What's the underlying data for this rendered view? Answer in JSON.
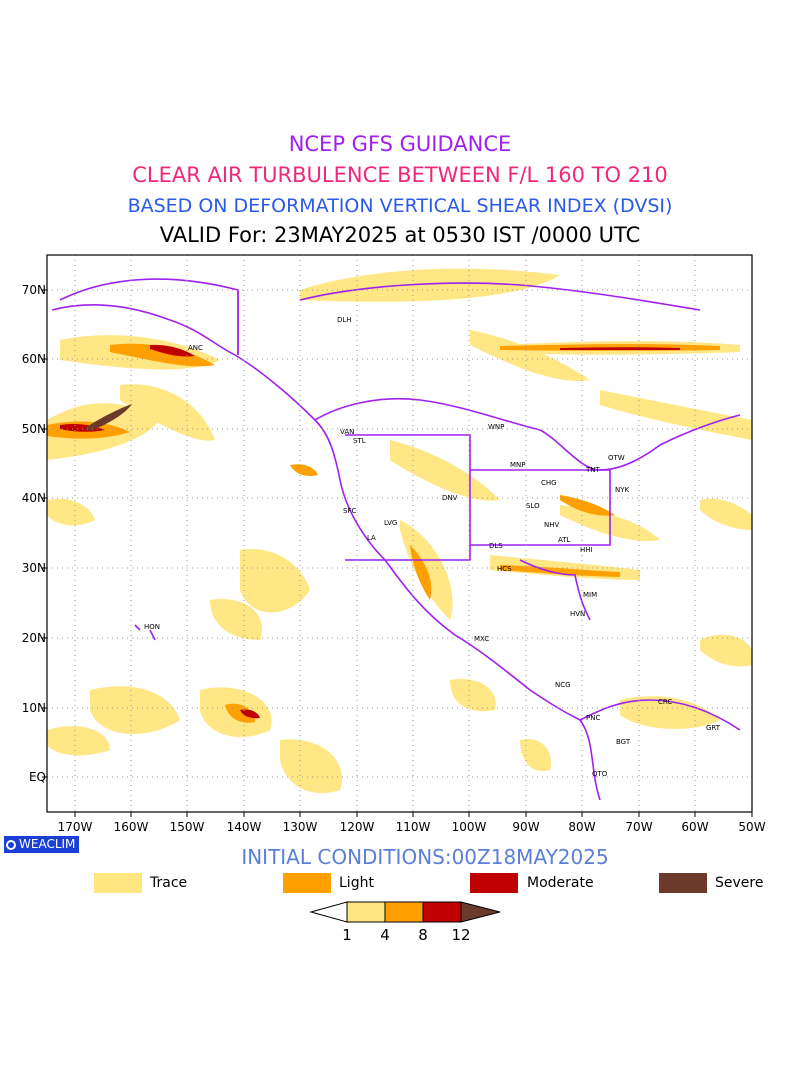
{
  "titles": {
    "line1": "NCEP GFS GUIDANCE",
    "line2": "CLEAR AIR TURBULENCE BETWEEN F/L 160 TO 210",
    "line3": "BASED ON DEFORMATION VERTICAL SHEAR INDEX (DVSI)",
    "line4": "VALID For: 23MAY2025 at 0530 IST /0000 UTC"
  },
  "initial_conditions": "INITIAL CONDITIONS:00Z18MAY2025",
  "brand": "WEACLIM",
  "lat_labels": [
    "70N",
    "60N",
    "50N",
    "40N",
    "30N",
    "20N",
    "10N",
    "EQ"
  ],
  "lon_labels": [
    "170W",
    "160W",
    "150W",
    "140W",
    "130W",
    "120W",
    "110W",
    "100W",
    "90W",
    "80W",
    "70W",
    "60W",
    "50W"
  ],
  "legend": {
    "items": [
      {
        "label": "Trace",
        "color": "#ffe680"
      },
      {
        "label": "Light",
        "color": "#ffa000"
      },
      {
        "label": "Moderate",
        "color": "#c00000"
      },
      {
        "label": "Severe",
        "color": "#6b3a2a"
      }
    ],
    "colorbar_ticks": [
      "1",
      "4",
      "8",
      "12"
    ]
  },
  "cities": [
    "ANC",
    "HON",
    "VAN",
    "STL",
    "SFC",
    "LA",
    "LVG",
    "DNV",
    "DLS",
    "HCS",
    "MXC",
    "MNP",
    "WNP",
    "CHG",
    "SLO",
    "NHV",
    "ATL",
    "HHI",
    "TNT",
    "OTW",
    "NYK",
    "MIM",
    "HVN",
    "NCG",
    "PNC",
    "BGT",
    "QTO",
    "CRC",
    "GRT",
    "DLH"
  ],
  "colors": {
    "coastline": "#a020f0",
    "grid": "#9a9a9a",
    "trace": "#ffe680",
    "light": "#ffa000",
    "moderate": "#c00000",
    "severe": "#6b3a2a"
  }
}
